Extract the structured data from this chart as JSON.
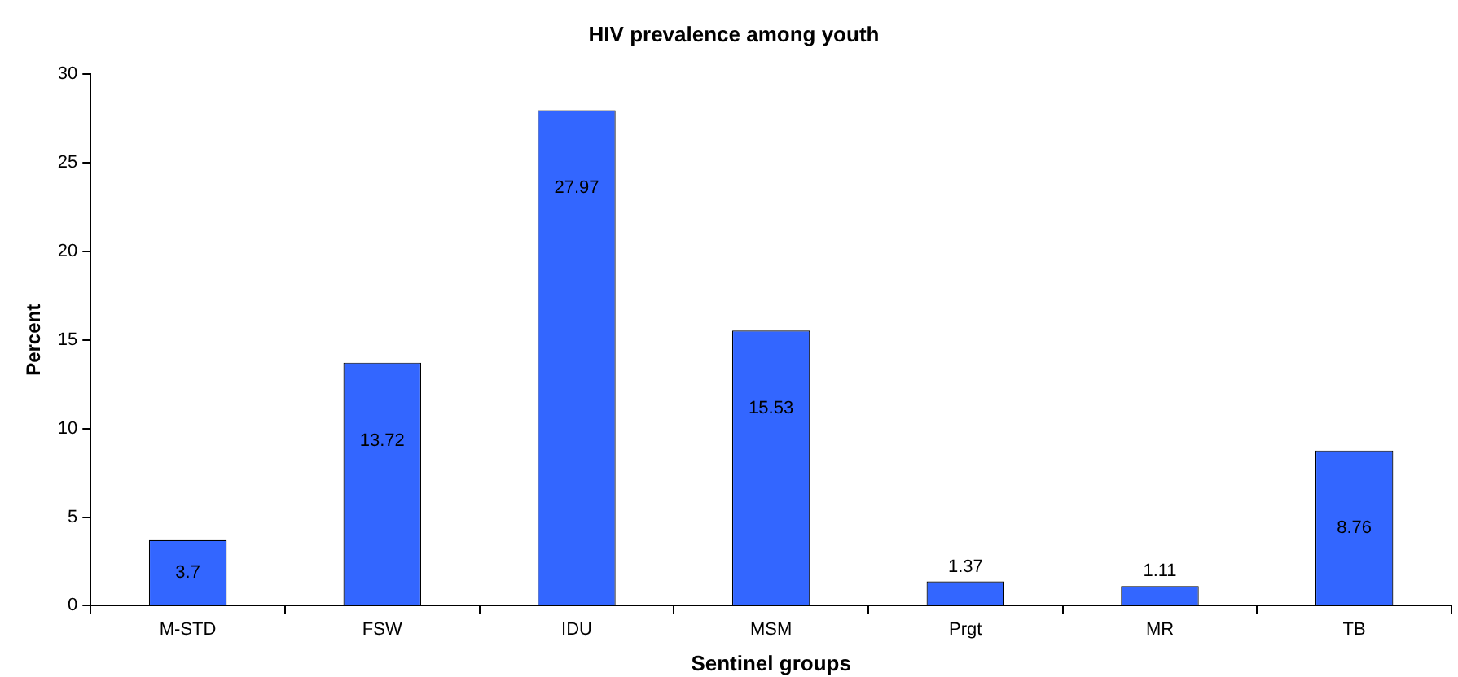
{
  "chart_data": {
    "type": "bar",
    "title": "HIV prevalence among youth",
    "xlabel": "Sentinel groups",
    "ylabel": "Percent",
    "categories": [
      "M-STD",
      "FSW",
      "IDU",
      "MSM",
      "Prgt",
      "MR",
      "TB"
    ],
    "values": [
      3.7,
      13.72,
      27.97,
      15.53,
      1.37,
      1.11,
      8.76
    ],
    "color": "#3366ff",
    "ylim": [
      0,
      30
    ],
    "yticks": [
      0,
      5,
      10,
      15,
      20,
      25,
      30
    ],
    "grid": false,
    "data_labels": true,
    "legend": false
  }
}
